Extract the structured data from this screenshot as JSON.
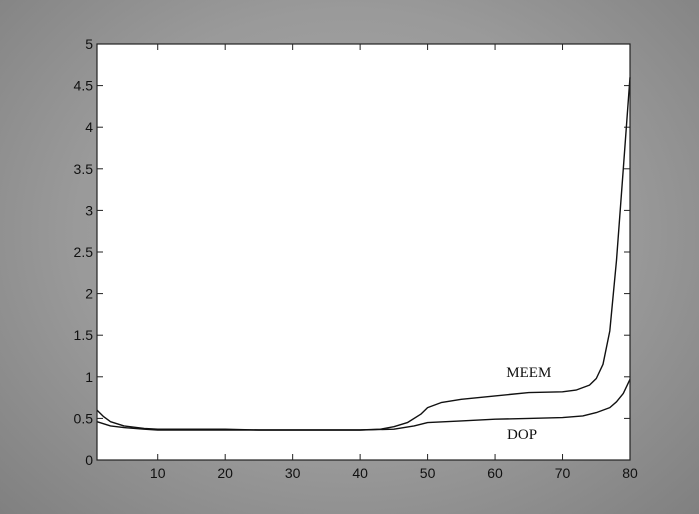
{
  "chart_data": {
    "type": "line",
    "title": "",
    "xlabel": "",
    "ylabel": "",
    "xlim": [
      1,
      80
    ],
    "ylim": [
      0,
      5
    ],
    "x_ticks": [
      10,
      20,
      30,
      40,
      50,
      60,
      70,
      80
    ],
    "y_ticks": [
      0,
      0.5,
      1,
      1.5,
      2,
      2.5,
      3,
      3.5,
      4,
      4.5,
      5
    ],
    "x_tick_labels": [
      "10",
      "20",
      "30",
      "40",
      "50",
      "60",
      "70",
      "80"
    ],
    "y_tick_labels": [
      "0",
      "0.5",
      "1",
      "1.5",
      "2",
      "2.5",
      "3",
      "3.5",
      "4",
      "4.5",
      "5"
    ],
    "grid": false,
    "legend": "none",
    "series": [
      {
        "name": "MEEM",
        "x": [
          1,
          2,
          3,
          5,
          8,
          10,
          15,
          20,
          25,
          30,
          35,
          40,
          43,
          45,
          47,
          49,
          50,
          52,
          55,
          60,
          65,
          70,
          72,
          74,
          75,
          76,
          77,
          78,
          79,
          80
        ],
        "y": [
          0.6,
          0.52,
          0.46,
          0.41,
          0.38,
          0.37,
          0.37,
          0.37,
          0.36,
          0.36,
          0.36,
          0.36,
          0.37,
          0.4,
          0.45,
          0.55,
          0.63,
          0.69,
          0.73,
          0.77,
          0.81,
          0.82,
          0.84,
          0.9,
          0.98,
          1.15,
          1.55,
          2.4,
          3.5,
          4.6
        ]
      },
      {
        "name": "DOP",
        "x": [
          1,
          3,
          5,
          8,
          10,
          15,
          20,
          25,
          30,
          35,
          40,
          45,
          48,
          50,
          55,
          60,
          65,
          70,
          73,
          75,
          77,
          78,
          79,
          80
        ],
        "y": [
          0.46,
          0.41,
          0.39,
          0.37,
          0.36,
          0.36,
          0.36,
          0.36,
          0.36,
          0.36,
          0.36,
          0.37,
          0.41,
          0.45,
          0.47,
          0.49,
          0.5,
          0.51,
          0.53,
          0.57,
          0.63,
          0.7,
          0.8,
          0.97
        ]
      }
    ],
    "annotations": [
      {
        "text": "MEEM",
        "x": 65,
        "y": 1.0
      },
      {
        "text": "DOP",
        "x": 64,
        "y": 0.25
      }
    ],
    "colors": {
      "line": "#111111",
      "plot_bg": "#ffffff",
      "frame": "#222222",
      "page": "#9a9a9a"
    }
  }
}
